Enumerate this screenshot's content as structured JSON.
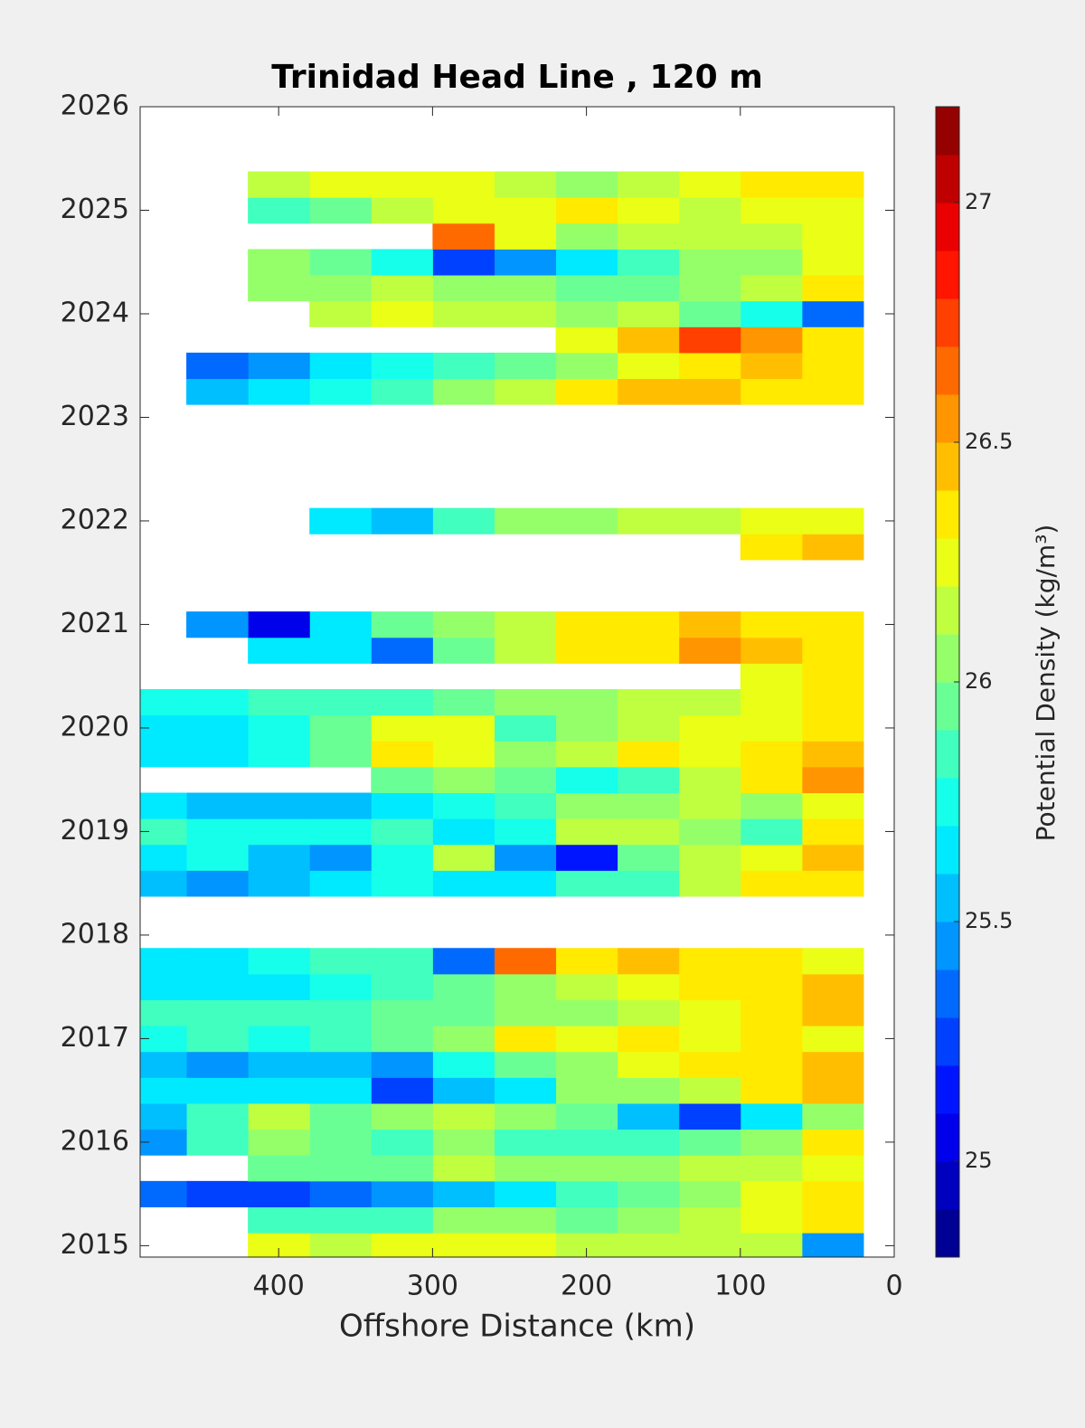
{
  "chart_data": {
    "type": "heatmap",
    "title": "Trinidad Head Line , 120 m",
    "xlabel": "Offshore Distance (km)",
    "colorbar_label": "Potential Density (kg/m³)",
    "xlim": [
      490,
      0
    ],
    "xticks": [
      400,
      300,
      200,
      100,
      0
    ],
    "ylim": [
      2014.89,
      2026
    ],
    "yticks": [
      2015,
      2016,
      2017,
      2018,
      2019,
      2020,
      2021,
      2022,
      2023,
      2024,
      2025,
      2026
    ],
    "clim": [
      24.8,
      27.2
    ],
    "levels": 24,
    "cticks": [
      25,
      25.5,
      26,
      26.5,
      27
    ],
    "colormap": "jet",
    "x": [
      40,
      80,
      120,
      160,
      200,
      240,
      280,
      320,
      360,
      400,
      440,
      480
    ],
    "y": [
      2015,
      2015.25,
      2015.5,
      2015.75,
      2016,
      2016.25,
      2016.5,
      2016.75,
      2017,
      2017.25,
      2017.5,
      2017.75,
      2018,
      2018.25,
      2018.5,
      2018.75,
      2019,
      2019.25,
      2019.5,
      2019.75,
      2020,
      2020.25,
      2020.5,
      2020.75,
      2021,
      2021.25,
      2021.5,
      2021.75,
      2022,
      2022.25,
      2022.5,
      2022.75,
      2023,
      2023.25,
      2023.5,
      2023.75,
      2024,
      2024.25,
      2024.5,
      2024.75,
      2025,
      2025.25
    ],
    "z": [
      [
        25.4,
        26.1,
        26.1,
        26.1,
        26.1,
        26.2,
        26.2,
        26.2,
        26.1,
        26.2,
        null,
        null
      ],
      [
        26.3,
        26.2,
        26.1,
        26.0,
        25.9,
        26.0,
        26.0,
        25.8,
        25.8,
        25.8,
        null,
        null
      ],
      [
        26.3,
        26.2,
        26.0,
        25.9,
        25.8,
        25.6,
        25.5,
        25.4,
        25.3,
        25.2,
        25.2,
        25.3
      ],
      [
        26.2,
        26.1,
        26.1,
        26.0,
        26.0,
        26.0,
        26.1,
        25.9,
        25.9,
        25.9,
        null,
        null
      ],
      [
        26.3,
        26.0,
        25.9,
        25.8,
        25.8,
        25.8,
        26.0,
        25.8,
        25.9,
        26.0,
        25.8,
        25.4
      ],
      [
        26.0,
        25.6,
        25.2,
        25.5,
        25.9,
        26.0,
        26.1,
        26.0,
        25.9,
        26.1,
        25.8,
        25.5
      ],
      [
        26.4,
        26.3,
        26.1,
        26.0,
        26.0,
        25.6,
        25.5,
        25.2,
        25.6,
        25.6,
        25.6,
        25.6
      ],
      [
        26.4,
        26.3,
        26.3,
        26.2,
        26.0,
        25.9,
        25.7,
        25.4,
        25.5,
        25.5,
        25.4,
        25.5
      ],
      [
        26.2,
        26.3,
        26.2,
        26.3,
        26.2,
        26.3,
        26.0,
        25.9,
        25.8,
        25.7,
        25.8,
        25.7
      ],
      [
        26.4,
        26.3,
        26.2,
        26.1,
        26.0,
        26.0,
        25.9,
        25.9,
        25.8,
        25.8,
        25.8,
        25.8
      ],
      [
        26.4,
        26.3,
        26.3,
        26.2,
        26.1,
        26.0,
        25.9,
        25.8,
        25.7,
        25.6,
        25.6,
        25.6
      ],
      [
        26.2,
        26.3,
        26.3,
        26.4,
        26.3,
        26.6,
        25.3,
        25.8,
        25.8,
        25.7,
        25.6,
        25.6
      ],
      [
        null,
        null,
        null,
        null,
        null,
        null,
        null,
        null,
        null,
        null,
        null,
        null
      ],
      [
        null,
        null,
        null,
        null,
        null,
        null,
        null,
        null,
        null,
        null,
        null,
        null
      ],
      [
        26.3,
        26.3,
        26.1,
        25.8,
        25.8,
        25.6,
        25.6,
        25.7,
        25.6,
        25.5,
        25.4,
        25.5
      ],
      [
        26.4,
        26.2,
        26.1,
        25.9,
        25.1,
        25.4,
        26.1,
        25.7,
        25.4,
        25.5,
        25.7,
        25.6
      ],
      [
        26.3,
        25.8,
        26.0,
        26.1,
        26.1,
        25.7,
        25.6,
        25.8,
        25.7,
        25.7,
        25.7,
        25.8
      ],
      [
        26.2,
        26.0,
        26.1,
        26.0,
        26.0,
        25.8,
        25.7,
        25.6,
        25.5,
        25.5,
        25.5,
        25.6
      ],
      [
        26.5,
        26.3,
        26.1,
        25.8,
        25.7,
        25.9,
        26.0,
        25.9,
        null,
        null,
        null,
        null
      ],
      [
        26.4,
        26.3,
        26.2,
        26.3,
        26.1,
        26.0,
        26.2,
        26.3,
        25.9,
        25.7,
        25.6,
        25.6
      ],
      [
        26.3,
        26.2,
        26.2,
        26.1,
        26.0,
        25.8,
        26.2,
        26.2,
        25.9,
        25.7,
        25.6,
        25.6
      ],
      [
        26.3,
        26.2,
        26.1,
        26.1,
        26.0,
        26.0,
        25.9,
        25.8,
        25.8,
        25.8,
        25.7,
        25.7
      ],
      [
        26.3,
        26.2,
        null,
        null,
        null,
        null,
        null,
        null,
        null,
        null,
        null,
        null
      ],
      [
        26.3,
        26.4,
        26.5,
        26.3,
        26.3,
        26.1,
        25.9,
        25.3,
        25.6,
        25.6,
        null,
        null
      ],
      [
        26.3,
        26.3,
        26.4,
        26.3,
        26.3,
        26.1,
        26.0,
        25.9,
        25.6,
        25.0,
        25.4,
        null
      ],
      [
        null,
        null,
        null,
        null,
        null,
        null,
        null,
        null,
        null,
        null,
        null,
        null
      ],
      [
        null,
        null,
        null,
        null,
        null,
        null,
        null,
        null,
        null,
        null,
        null,
        null
      ],
      [
        26.4,
        26.3,
        null,
        null,
        null,
        null,
        null,
        null,
        null,
        null,
        null,
        null
      ],
      [
        26.2,
        26.2,
        26.1,
        26.1,
        26.0,
        26.0,
        25.8,
        25.5,
        25.6,
        null,
        null,
        null
      ],
      [
        null,
        null,
        null,
        null,
        null,
        null,
        null,
        null,
        null,
        null,
        null,
        null
      ],
      [
        null,
        null,
        null,
        null,
        null,
        null,
        null,
        null,
        null,
        null,
        null,
        null
      ],
      [
        null,
        null,
        null,
        null,
        null,
        null,
        null,
        null,
        null,
        null,
        null,
        null
      ],
      [
        null,
        null,
        null,
        null,
        null,
        null,
        null,
        null,
        null,
        null,
        null,
        null
      ],
      [
        26.3,
        26.3,
        26.4,
        26.4,
        26.3,
        26.1,
        26.0,
        25.8,
        25.7,
        25.6,
        25.5,
        null
      ],
      [
        26.3,
        26.4,
        26.3,
        26.2,
        26.0,
        25.9,
        25.8,
        25.7,
        25.6,
        25.4,
        25.3,
        null
      ],
      [
        26.3,
        26.5,
        26.7,
        26.4,
        26.2,
        null,
        null,
        null,
        null,
        null,
        null,
        null
      ],
      [
        25.3,
        25.7,
        25.9,
        26.1,
        26.0,
        26.1,
        26.1,
        26.2,
        26.1,
        null,
        null,
        null
      ],
      [
        26.3,
        26.1,
        26.0,
        25.9,
        25.9,
        26.0,
        26.0,
        26.1,
        26.0,
        26.0,
        null,
        null
      ],
      [
        26.2,
        26.0,
        26.0,
        25.8,
        25.6,
        25.4,
        25.2,
        25.7,
        25.9,
        26.0,
        null,
        null
      ],
      [
        26.2,
        26.1,
        26.1,
        26.1,
        26.0,
        26.2,
        26.6,
        null,
        null,
        null,
        null,
        null
      ],
      [
        26.2,
        26.2,
        26.1,
        26.2,
        26.3,
        26.2,
        26.2,
        26.1,
        25.9,
        25.8,
        null,
        null
      ],
      [
        26.3,
        26.3,
        26.2,
        26.1,
        26.0,
        26.1,
        26.2,
        26.2,
        26.2,
        26.1,
        null,
        null
      ]
    ]
  }
}
